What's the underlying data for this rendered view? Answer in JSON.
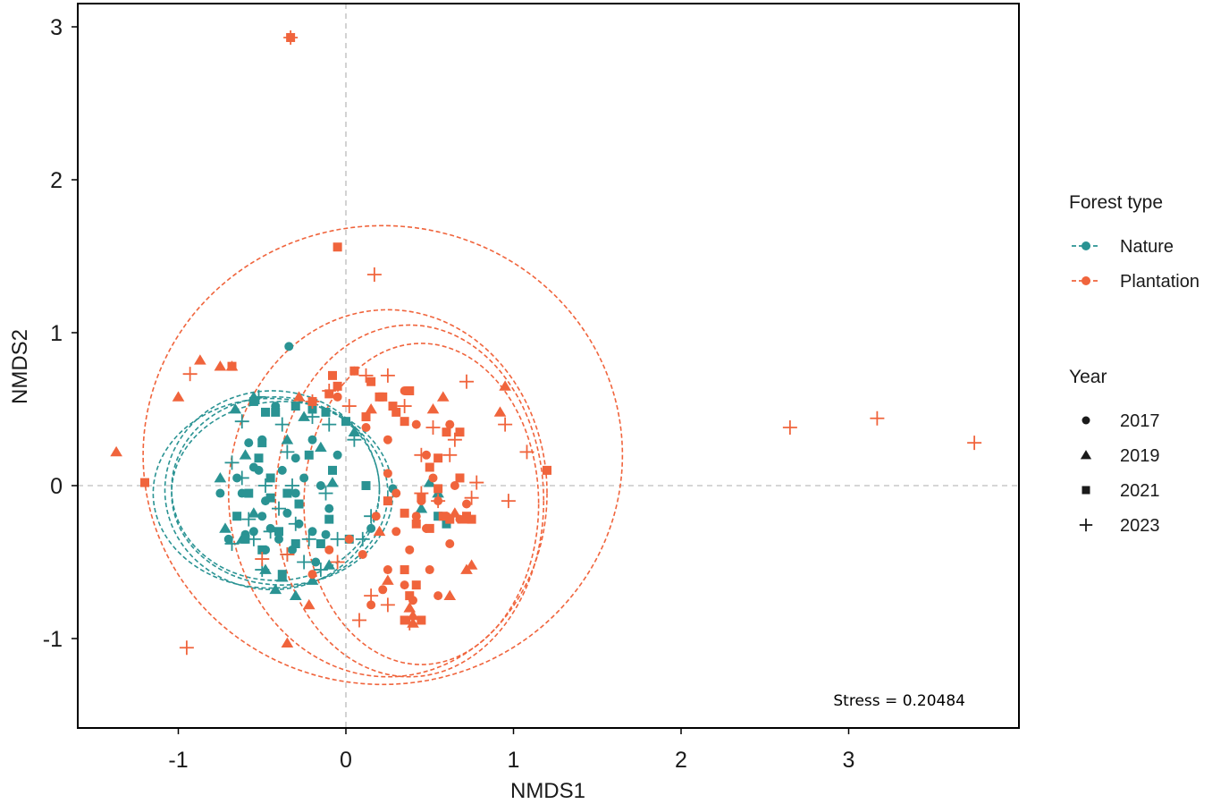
{
  "chart_data": {
    "type": "scatter",
    "xlabel": "NMDS1",
    "ylabel": "NMDS2",
    "xlim": [
      -1.6,
      4.1
    ],
    "ylim": [
      -1.6,
      3.1
    ],
    "xticks": [
      -1,
      0,
      1,
      2,
      3
    ],
    "yticks": [
      -1,
      0,
      1,
      2,
      3
    ],
    "xtick_labels": [
      "-1",
      "0",
      "1",
      "2",
      "3"
    ],
    "ytick_labels": [
      "-1",
      "0",
      "1",
      "2",
      "3"
    ],
    "grid": false,
    "reference_lines": {
      "x": 0,
      "y": 0,
      "style": "dashed",
      "color": "#c8c8c8"
    },
    "annotation": "Stress = 0.20484",
    "colors": {
      "Nature": "#2a9393",
      "Plantation": "#f0643c"
    },
    "legend": {
      "placement": "right",
      "color_title": "Forest type",
      "color_items": [
        "Nature",
        "Plantation"
      ],
      "shape_title": "Year",
      "shape_items": [
        {
          "label": "2017",
          "shape": "circle"
        },
        {
          "label": "2019",
          "shape": "triangle"
        },
        {
          "label": "2021",
          "shape": "square"
        },
        {
          "label": "2023",
          "shape": "plus"
        }
      ]
    },
    "ellipses": [
      {
        "group": "Nature",
        "year": "2017",
        "cx": -0.42,
        "cy": -0.02,
        "rx": 0.62,
        "ry": 0.6
      },
      {
        "group": "Nature",
        "year": "2019",
        "cx": -0.38,
        "cy": -0.05,
        "rx": 0.66,
        "ry": 0.6
      },
      {
        "group": "Nature",
        "year": "2021",
        "cx": -0.44,
        "cy": -0.03,
        "rx": 0.64,
        "ry": 0.65
      },
      {
        "group": "Nature",
        "year": "2023",
        "cx": -0.45,
        "cy": -0.05,
        "rx": 0.7,
        "ry": 0.62
      },
      {
        "group": "Plantation",
        "year": "2023",
        "cx": 0.22,
        "cy": 0.2,
        "rx": 1.43,
        "ry": 1.5
      },
      {
        "group": "Plantation",
        "year": "2019",
        "cx": 0.25,
        "cy": -0.05,
        "rx": 0.95,
        "ry": 1.2
      },
      {
        "group": "Plantation",
        "year": "2017",
        "cx": 0.38,
        "cy": -0.1,
        "rx": 0.8,
        "ry": 1.15
      },
      {
        "group": "Plantation",
        "year": "2021",
        "cx": 0.45,
        "cy": -0.12,
        "rx": 0.7,
        "ry": 1.05
      }
    ],
    "series": [
      {
        "name": "Nature",
        "year": "2017",
        "points": [
          [
            -0.34,
            0.91
          ],
          [
            -0.55,
            -0.3
          ],
          [
            -0.5,
            -0.2
          ],
          [
            -0.6,
            -0.32
          ],
          [
            -0.45,
            -0.28
          ],
          [
            -0.48,
            -0.1
          ],
          [
            -0.52,
            0.1
          ],
          [
            -0.62,
            -0.05
          ],
          [
            -0.4,
            -0.35
          ],
          [
            -0.35,
            -0.18
          ],
          [
            -0.3,
            0.18
          ],
          [
            -0.28,
            -0.25
          ],
          [
            -0.2,
            -0.3
          ],
          [
            -0.15,
            0.0
          ],
          [
            -0.1,
            -0.15
          ],
          [
            -0.05,
            0.2
          ],
          [
            -0.42,
            0.52
          ],
          [
            -0.58,
            0.28
          ],
          [
            -0.7,
            -0.35
          ],
          [
            -0.75,
            -0.05
          ],
          [
            -0.32,
            -0.42
          ],
          [
            -0.25,
            0.05
          ],
          [
            -0.55,
            0.12
          ],
          [
            -0.65,
            0.05
          ],
          [
            -0.38,
            0.1
          ],
          [
            -0.12,
            -0.32
          ],
          [
            -0.48,
            -0.42
          ],
          [
            -0.5,
            0.3
          ],
          [
            -0.3,
            -0.05
          ],
          [
            -0.2,
            0.3
          ],
          [
            0.15,
            -0.28
          ],
          [
            0.28,
            -0.02
          ],
          [
            -0.18,
            -0.5
          ]
        ]
      },
      {
        "name": "Nature",
        "year": "2019",
        "points": [
          [
            -0.66,
            0.5
          ],
          [
            -0.55,
            0.58
          ],
          [
            -0.75,
            0.05
          ],
          [
            -0.48,
            -0.55
          ],
          [
            -0.38,
            -0.6
          ],
          [
            -0.62,
            -0.35
          ],
          [
            -0.25,
            0.45
          ],
          [
            -0.15,
            0.25
          ],
          [
            -0.72,
            -0.28
          ],
          [
            -0.42,
            -0.68
          ],
          [
            -0.3,
            -0.72
          ],
          [
            -0.55,
            -0.18
          ],
          [
            -0.08,
            0.02
          ],
          [
            -0.2,
            -0.62
          ],
          [
            0.05,
            0.35
          ],
          [
            -0.6,
            0.2
          ],
          [
            -0.35,
            0.3
          ],
          [
            0.45,
            -0.15
          ],
          [
            0.5,
            0.02
          ],
          [
            0.55,
            -0.05
          ],
          [
            -0.1,
            -0.52
          ]
        ]
      },
      {
        "name": "Nature",
        "year": "2021",
        "points": [
          [
            -0.55,
            0.55
          ],
          [
            -0.48,
            0.48
          ],
          [
            -0.42,
            0.48
          ],
          [
            -0.52,
            0.18
          ],
          [
            -0.58,
            -0.05
          ],
          [
            -0.45,
            -0.08
          ],
          [
            -0.35,
            -0.05
          ],
          [
            -0.4,
            -0.3
          ],
          [
            -0.3,
            -0.38
          ],
          [
            -0.2,
            0.5
          ],
          [
            -0.12,
            0.48
          ],
          [
            -0.5,
            -0.42
          ],
          [
            -0.65,
            -0.2
          ],
          [
            -0.22,
            0.2
          ],
          [
            -0.1,
            -0.22
          ],
          [
            -0.08,
            0.1
          ],
          [
            0.02,
            -0.35
          ],
          [
            0.12,
            0.0
          ],
          [
            -0.3,
            0.52
          ],
          [
            -0.6,
            -0.35
          ],
          [
            -0.5,
            0.28
          ],
          [
            -0.28,
            -0.12
          ],
          [
            -0.38,
            -0.58
          ],
          [
            0.55,
            -0.2
          ],
          [
            0.6,
            -0.25
          ],
          [
            -0.45,
            0.05
          ],
          [
            0.0,
            0.42
          ],
          [
            -0.15,
            -0.38
          ]
        ]
      },
      {
        "name": "Nature",
        "year": "2023",
        "points": [
          [
            -0.52,
            0.58
          ],
          [
            -0.62,
            0.42
          ],
          [
            -0.68,
            -0.38
          ],
          [
            -0.55,
            -0.35
          ],
          [
            -0.45,
            -0.3
          ],
          [
            -0.3,
            -0.25
          ],
          [
            -0.25,
            -0.5
          ],
          [
            -0.15,
            -0.55
          ],
          [
            -0.35,
            0.22
          ],
          [
            -0.2,
            0.45
          ],
          [
            -0.1,
            0.4
          ],
          [
            -0.48,
            0.0
          ],
          [
            -0.62,
            0.05
          ],
          [
            -0.4,
            -0.15
          ],
          [
            -0.32,
            0.0
          ],
          [
            -0.05,
            -0.35
          ],
          [
            -0.22,
            -0.35
          ],
          [
            -0.58,
            -0.22
          ],
          [
            -0.35,
            -0.45
          ],
          [
            0.1,
            -0.35
          ],
          [
            -0.5,
            -0.55
          ],
          [
            -0.12,
            -0.05
          ],
          [
            0.05,
            0.3
          ],
          [
            -0.68,
            0.15
          ],
          [
            -0.38,
            0.4
          ],
          [
            0.15,
            -0.2
          ]
        ]
      },
      {
        "name": "Plantation",
        "year": "2017",
        "points": [
          [
            0.35,
            0.62
          ],
          [
            0.12,
            0.38
          ],
          [
            0.25,
            0.3
          ],
          [
            0.42,
            0.4
          ],
          [
            0.45,
            -0.1
          ],
          [
            0.55,
            -0.1
          ],
          [
            0.6,
            -0.2
          ],
          [
            0.68,
            -0.22
          ],
          [
            0.42,
            -0.2
          ],
          [
            0.3,
            -0.05
          ],
          [
            0.18,
            -0.2
          ],
          [
            0.25,
            -0.55
          ],
          [
            0.35,
            -0.65
          ],
          [
            0.4,
            -0.75
          ],
          [
            0.5,
            -0.55
          ],
          [
            0.55,
            -0.72
          ],
          [
            0.62,
            -0.38
          ],
          [
            0.72,
            -0.12
          ],
          [
            0.1,
            -0.45
          ],
          [
            0.02,
            -0.35
          ],
          [
            -0.1,
            -0.42
          ],
          [
            -0.2,
            -0.58
          ],
          [
            -0.05,
            0.58
          ],
          [
            0.05,
            0.75
          ],
          [
            0.62,
            0.4
          ],
          [
            0.48,
            0.2
          ],
          [
            0.3,
            -0.3
          ],
          [
            0.22,
            -0.68
          ],
          [
            0.38,
            -0.42
          ],
          [
            0.52,
            0.05
          ],
          [
            0.65,
            0.0
          ],
          [
            0.15,
            -0.78
          ],
          [
            0.25,
            0.08
          ],
          [
            0.48,
            -0.28
          ]
        ]
      },
      {
        "name": "Plantation",
        "year": "2019",
        "points": [
          [
            -0.87,
            0.82
          ],
          [
            -1.0,
            0.58
          ],
          [
            -1.37,
            0.22
          ],
          [
            -0.68,
            0.78
          ],
          [
            -0.28,
            0.58
          ],
          [
            0.25,
            -0.62
          ],
          [
            0.4,
            -0.85
          ],
          [
            0.62,
            -0.72
          ],
          [
            0.72,
            -0.55
          ],
          [
            0.75,
            -0.52
          ],
          [
            0.92,
            0.48
          ],
          [
            0.95,
            0.65
          ],
          [
            -0.35,
            -1.03
          ],
          [
            -0.22,
            -0.78
          ],
          [
            0.38,
            -0.8
          ],
          [
            0.4,
            -0.9
          ],
          [
            0.58,
            0.58
          ],
          [
            0.52,
            0.5
          ],
          [
            0.65,
            -0.18
          ],
          [
            0.7,
            -0.22
          ],
          [
            -0.75,
            0.78
          ],
          [
            0.2,
            -0.3
          ],
          [
            0.15,
            0.5
          ]
        ]
      },
      {
        "name": "Plantation",
        "year": "2021",
        "points": [
          [
            -0.33,
            2.93
          ],
          [
            -1.2,
            0.02
          ],
          [
            -0.68,
            0.78
          ],
          [
            -0.2,
            0.55
          ],
          [
            -0.08,
            0.72
          ],
          [
            -0.1,
            0.6
          ],
          [
            -0.05,
            0.65
          ],
          [
            0.05,
            0.75
          ],
          [
            0.12,
            0.45
          ],
          [
            0.22,
            0.58
          ],
          [
            0.28,
            0.52
          ],
          [
            0.38,
            0.62
          ],
          [
            0.35,
            0.42
          ],
          [
            0.3,
            0.48
          ],
          [
            0.25,
            -0.1
          ],
          [
            0.35,
            -0.18
          ],
          [
            0.42,
            -0.25
          ],
          [
            0.5,
            -0.28
          ],
          [
            0.45,
            -0.08
          ],
          [
            0.58,
            -0.2
          ],
          [
            0.62,
            -0.22
          ],
          [
            0.68,
            0.05
          ],
          [
            0.72,
            -0.2
          ],
          [
            0.55,
            0.18
          ],
          [
            0.6,
            0.35
          ],
          [
            0.68,
            0.35
          ],
          [
            0.35,
            -0.55
          ],
          [
            0.42,
            -0.65
          ],
          [
            0.38,
            -0.72
          ],
          [
            0.45,
            -0.88
          ],
          [
            0.35,
            -0.88
          ],
          [
            0.15,
            0.68
          ],
          [
            0.2,
            0.58
          ],
          [
            1.2,
            0.1
          ],
          [
            0.55,
            -0.02
          ],
          [
            -0.05,
            1.56
          ],
          [
            0.75,
            -0.22
          ],
          [
            0.5,
            0.12
          ]
        ]
      },
      {
        "name": "Plantation",
        "year": "2023",
        "points": [
          [
            -0.33,
            2.93
          ],
          [
            0.17,
            1.38
          ],
          [
            -0.93,
            0.73
          ],
          [
            -0.95,
            -1.06
          ],
          [
            2.65,
            0.38
          ],
          [
            3.17,
            0.44
          ],
          [
            3.75,
            0.28
          ],
          [
            0.97,
            -0.1
          ],
          [
            1.08,
            0.22
          ],
          [
            0.72,
            0.68
          ],
          [
            0.52,
            0.38
          ],
          [
            0.45,
            0.2
          ],
          [
            0.35,
            0.52
          ],
          [
            0.25,
            0.72
          ],
          [
            0.12,
            0.72
          ],
          [
            0.02,
            0.52
          ],
          [
            -0.1,
            0.62
          ],
          [
            -0.2,
            0.55
          ],
          [
            0.62,
            0.2
          ],
          [
            0.65,
            0.3
          ],
          [
            0.78,
            0.02
          ],
          [
            0.95,
            0.4
          ],
          [
            -0.5,
            -0.48
          ],
          [
            -0.35,
            -0.45
          ],
          [
            0.15,
            -0.72
          ],
          [
            0.25,
            -0.78
          ],
          [
            0.38,
            -0.9
          ],
          [
            0.08,
            -0.88
          ],
          [
            -0.05,
            -0.5
          ],
          [
            0.55,
            -0.1
          ],
          [
            0.45,
            -0.05
          ],
          [
            0.75,
            -0.08
          ]
        ]
      }
    ]
  }
}
